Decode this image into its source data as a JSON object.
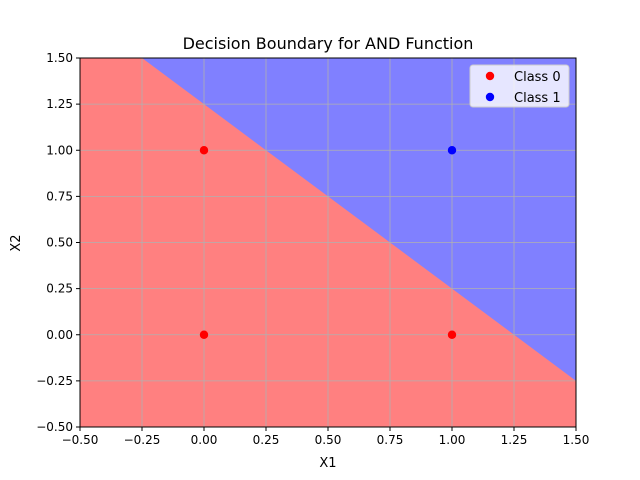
{
  "chart_data": {
    "type": "scatter",
    "title": "Decision Boundary for AND Function",
    "xlabel": "X1",
    "ylabel": "X2",
    "xlim": [
      -0.5,
      1.5
    ],
    "ylim": [
      -0.5,
      1.5
    ],
    "xticks": [
      -0.5,
      -0.25,
      0.0,
      0.25,
      0.5,
      0.75,
      1.0,
      1.25,
      1.5
    ],
    "yticks": [
      -0.5,
      -0.25,
      0.0,
      0.25,
      0.5,
      0.75,
      1.0,
      1.25,
      1.5
    ],
    "xtick_labels": [
      "−0.50",
      "−0.25",
      "0.00",
      "0.25",
      "0.50",
      "0.75",
      "1.00",
      "1.25",
      "1.50"
    ],
    "ytick_labels": [
      "−0.50",
      "−0.25",
      "0.00",
      "0.25",
      "0.50",
      "0.75",
      "1.00",
      "1.25",
      "1.50"
    ],
    "grid": true,
    "legend_position": "top-right",
    "decision_boundary": {
      "description_equation": "x1 + x2 = 1.25",
      "weights": [
        1,
        1
      ],
      "threshold": 1.25,
      "region_below": {
        "class": "Class 0",
        "color": "#ff8080"
      },
      "region_above": {
        "class": "Class 1",
        "color": "#8080ff"
      }
    },
    "series": [
      {
        "name": "Class 0",
        "color": "#ff0000",
        "points": [
          [
            0,
            0
          ],
          [
            0,
            1
          ],
          [
            1,
            0
          ]
        ]
      },
      {
        "name": "Class 1",
        "color": "#0000ff",
        "points": [
          [
            1,
            1
          ]
        ]
      }
    ]
  }
}
